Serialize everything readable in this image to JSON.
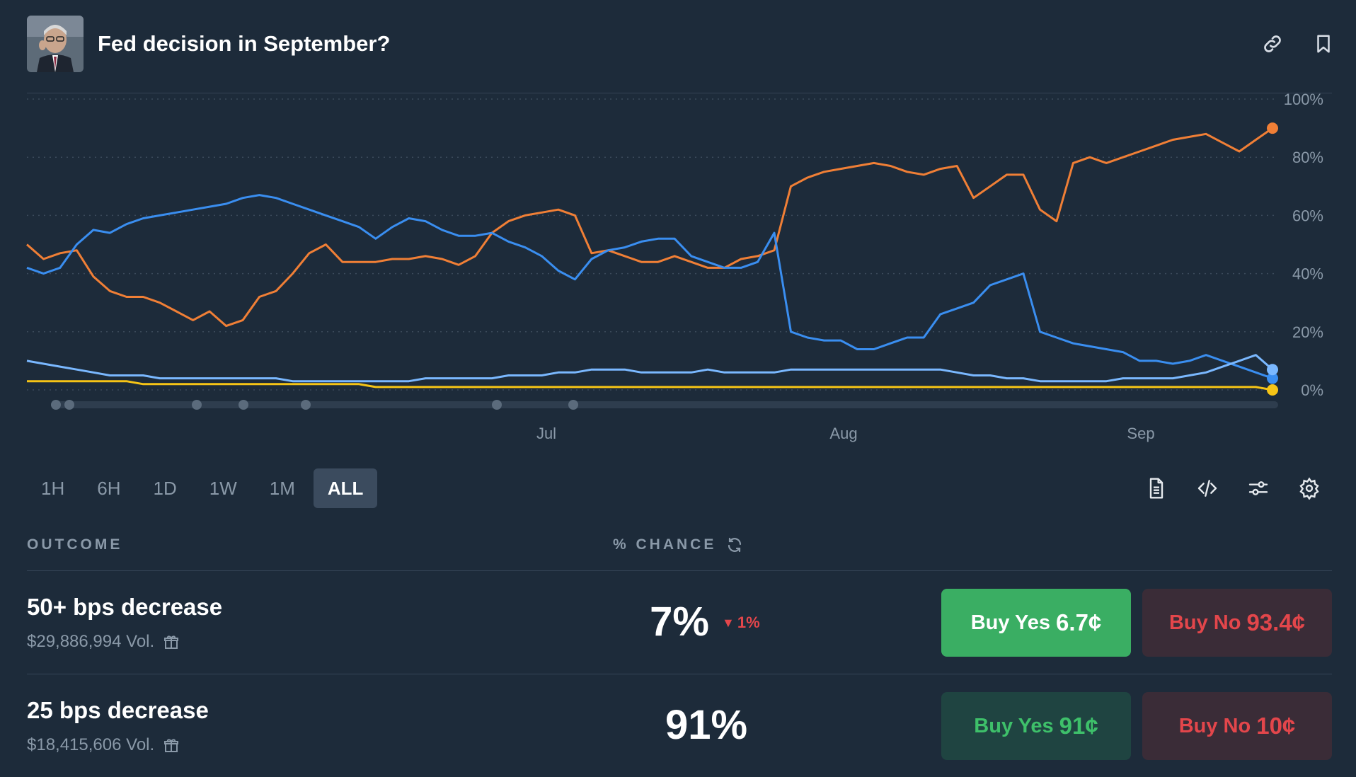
{
  "header": {
    "title": "Fed decision in September?",
    "avatar_icon": "portrait",
    "link_icon": "link-icon",
    "bookmark_icon": "bookmark-icon"
  },
  "chart_data": {
    "type": "line",
    "ylim": [
      0,
      100
    ],
    "y_ticks": [
      "100%",
      "80%",
      "60%",
      "40%",
      "20%",
      "0%"
    ],
    "x_ticks": [
      "Jul",
      "Aug",
      "Sep"
    ],
    "series": [
      {
        "color": "#f07f36",
        "values": [
          50,
          45,
          47,
          48,
          39,
          34,
          32,
          32,
          30,
          27,
          24,
          27,
          22,
          24,
          32,
          34,
          40,
          47,
          50,
          44,
          44,
          44,
          45,
          45,
          46,
          45,
          43,
          46,
          54,
          58,
          60,
          61,
          62,
          60,
          47,
          48,
          46,
          44,
          44,
          46,
          44,
          42,
          42,
          45,
          46,
          48,
          70,
          73,
          75,
          76,
          77,
          78,
          77,
          75,
          74,
          76,
          77,
          66,
          70,
          74,
          74,
          62,
          58,
          78,
          80,
          78,
          80,
          82,
          84,
          86,
          87,
          88,
          85,
          82,
          86,
          90
        ]
      },
      {
        "color": "#3a8ef0",
        "values": [
          42,
          40,
          42,
          50,
          55,
          54,
          57,
          59,
          60,
          61,
          62,
          63,
          64,
          66,
          67,
          66,
          64,
          62,
          60,
          58,
          56,
          52,
          56,
          59,
          58,
          55,
          53,
          53,
          54,
          51,
          49,
          46,
          41,
          38,
          45,
          48,
          49,
          51,
          52,
          52,
          46,
          44,
          42,
          42,
          44,
          54,
          20,
          18,
          17,
          17,
          14,
          14,
          16,
          18,
          18,
          26,
          28,
          30,
          36,
          38,
          40,
          20,
          18,
          16,
          15,
          14,
          13,
          10,
          10,
          9,
          10,
          12,
          10,
          8,
          6,
          4
        ]
      },
      {
        "color": "#7ab8ff",
        "values": [
          10,
          9,
          8,
          7,
          6,
          5,
          5,
          5,
          4,
          4,
          4,
          4,
          4,
          4,
          4,
          4,
          3,
          3,
          3,
          3,
          3,
          3,
          3,
          3,
          4,
          4,
          4,
          4,
          4,
          5,
          5,
          5,
          6,
          6,
          7,
          7,
          7,
          6,
          6,
          6,
          6,
          7,
          6,
          6,
          6,
          6,
          7,
          7,
          7,
          7,
          7,
          7,
          7,
          7,
          7,
          7,
          6,
          5,
          5,
          4,
          4,
          3,
          3,
          3,
          3,
          3,
          4,
          4,
          4,
          4,
          5,
          6,
          8,
          10,
          12,
          7
        ]
      },
      {
        "color": "#f6c416",
        "values": [
          3,
          3,
          3,
          3,
          3,
          3,
          3,
          2,
          2,
          2,
          2,
          2,
          2,
          2,
          2,
          2,
          2,
          2,
          2,
          2,
          2,
          1,
          1,
          1,
          1,
          1,
          1,
          1,
          1,
          1,
          1,
          1,
          1,
          1,
          1,
          1,
          1,
          1,
          1,
          1,
          1,
          1,
          1,
          1,
          1,
          1,
          1,
          1,
          1,
          1,
          1,
          1,
          1,
          1,
          1,
          1,
          1,
          1,
          1,
          1,
          1,
          1,
          1,
          1,
          1,
          1,
          1,
          1,
          1,
          1,
          1,
          1,
          1,
          1,
          1,
          0
        ]
      }
    ]
  },
  "range_tabs": [
    "1H",
    "6H",
    "1D",
    "1W",
    "1M",
    "ALL"
  ],
  "active_range": "ALL",
  "tools": {
    "doc_icon": "document-icon",
    "embed_icon": "code-icon",
    "filter_icon": "sliders-icon",
    "settings_icon": "gear-icon"
  },
  "table": {
    "outcome_header": "OUTCOME",
    "chance_header": "% CHANCE",
    "refresh_icon": "refresh-icon",
    "rows": [
      {
        "name": "50+ bps decrease",
        "volume": "$29,886,994 Vol.",
        "chance": "7%",
        "delta": "1%",
        "buy_yes_label": "Buy Yes",
        "buy_yes_price": "6.7¢",
        "buy_no_label": "Buy No",
        "buy_no_price": "93.4¢"
      },
      {
        "name": "25 bps decrease",
        "volume": "$18,415,606 Vol.",
        "chance": "91%",
        "buy_yes_label": "Buy Yes",
        "buy_yes_price": "91¢",
        "buy_no_label": "Buy No",
        "buy_no_price": "10¢"
      }
    ]
  }
}
